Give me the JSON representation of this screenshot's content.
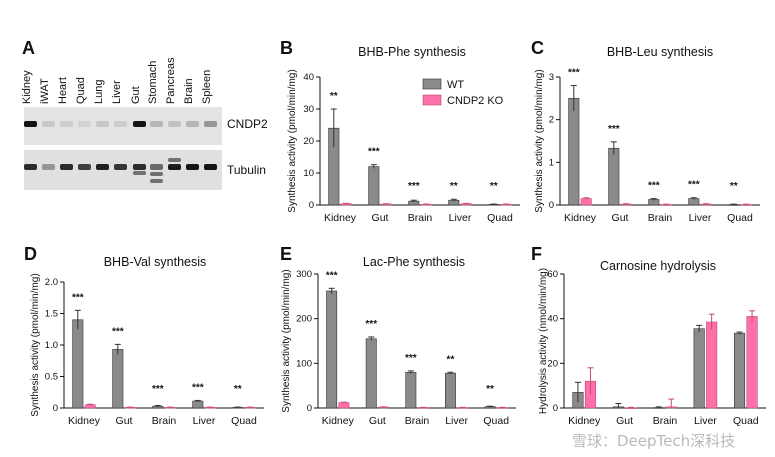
{
  "colors": {
    "wt": "#8a8a8a",
    "ko": "#ff6fa8",
    "axis": "#111111"
  },
  "panel_A": {
    "label": "A",
    "tissues": [
      "Kidney",
      "iWAT",
      "Heart",
      "Quad",
      "Lung",
      "Liver",
      "Gut",
      "Stomach",
      "Pancreas",
      "Brain",
      "Spleen"
    ],
    "blot_labels": [
      "CNDP2",
      "Tubulin"
    ]
  },
  "legend": {
    "wt": "WT",
    "ko": "CNDP2 KO"
  },
  "watermark": "雪球：DeepTech深科技",
  "chart_data": [
    {
      "panel": "B",
      "type": "bar",
      "title": "BHB-Phe synthesis",
      "ylabel": "Synthesis activity (pmol/min/mg)",
      "categories": [
        "Kidney",
        "Gut",
        "Brain",
        "Liver",
        "Quad"
      ],
      "ylim": [
        0,
        40
      ],
      "yticks": [
        0,
        10,
        20,
        30,
        40
      ],
      "series": [
        {
          "name": "WT",
          "values": [
            24,
            12,
            1.2,
            1.5,
            0.2
          ],
          "errors": [
            6,
            0.6,
            0.3,
            0.3,
            0.1
          ]
        },
        {
          "name": "CNDP2 KO",
          "values": [
            0.4,
            0.3,
            0.2,
            0.4,
            0.2
          ],
          "errors": [
            0.1,
            0.1,
            0.1,
            0.1,
            0.1
          ]
        }
      ],
      "significance": [
        "**",
        "***",
        "***",
        "**",
        "**"
      ]
    },
    {
      "panel": "C",
      "type": "bar",
      "title": "BHB-Leu synthesis",
      "ylabel": "Synthesis activity (pmol/min/mg)",
      "categories": [
        "Kidney",
        "Gut",
        "Brain",
        "Liver",
        "Quad"
      ],
      "ylim": [
        0,
        3
      ],
      "yticks": [
        0,
        1,
        2,
        3
      ],
      "series": [
        {
          "name": "WT",
          "values": [
            2.5,
            1.33,
            0.13,
            0.15,
            0.01
          ],
          "errors": [
            0.3,
            0.15,
            0.02,
            0.02,
            0.01
          ]
        },
        {
          "name": "CNDP2 KO",
          "values": [
            0.15,
            0.02,
            0.01,
            0.02,
            0.01
          ],
          "errors": [
            0.02,
            0.01,
            0.01,
            0.01,
            0.01
          ]
        }
      ],
      "significance": [
        "***",
        "***",
        "***",
        "***",
        "**"
      ]
    },
    {
      "panel": "D",
      "type": "bar",
      "title": "BHB-Val synthesis",
      "ylabel": "Synthesis activity (pmol/min/mg)",
      "categories": [
        "Kidney",
        "Gut",
        "Brain",
        "Liver",
        "Quad"
      ],
      "ylim": [
        0,
        2.0
      ],
      "yticks": [
        0,
        0.5,
        1.0,
        1.5,
        2.0
      ],
      "series": [
        {
          "name": "WT",
          "values": [
            1.4,
            0.93,
            0.03,
            0.11,
            0.01
          ],
          "errors": [
            0.15,
            0.08,
            0.01,
            0.01,
            0.005
          ]
        },
        {
          "name": "CNDP2 KO",
          "values": [
            0.05,
            0.01,
            0.01,
            0.01,
            0.01
          ],
          "errors": [
            0.01,
            0.005,
            0.005,
            0.005,
            0.005
          ]
        }
      ],
      "significance": [
        "***",
        "***",
        "***",
        "***",
        "**"
      ]
    },
    {
      "panel": "E",
      "type": "bar",
      "title": "Lac-Phe synthesis",
      "ylabel": "Synthesis activity (pmol/min/mg)",
      "categories": [
        "Kidney",
        "Gut",
        "Brain",
        "Liver",
        "Quad"
      ],
      "ylim": [
        0,
        300
      ],
      "yticks": [
        0,
        100,
        200,
        300
      ],
      "series": [
        {
          "name": "WT",
          "values": [
            262,
            155,
            80,
            78,
            3
          ],
          "errors": [
            6,
            4,
            3,
            2,
            1
          ]
        },
        {
          "name": "CNDP2 KO",
          "values": [
            12,
            2,
            1,
            1,
            1
          ],
          "errors": [
            1,
            0.5,
            0.5,
            0.5,
            0.5
          ]
        }
      ],
      "significance": [
        "***",
        "***",
        "***",
        "**",
        "**"
      ]
    },
    {
      "panel": "F",
      "type": "bar",
      "title": "Carnosine hydrolysis",
      "ylabel": "Hydrolysis activity (nmol/min/mg)",
      "categories": [
        "Kidney",
        "Gut",
        "Brain",
        "Liver",
        "Quad"
      ],
      "ylim": [
        0,
        60
      ],
      "yticks": [
        0,
        20,
        40,
        60
      ],
      "series": [
        {
          "name": "WT",
          "values": [
            7,
            0.5,
            0.2,
            35.5,
            33.5
          ],
          "errors": [
            4.5,
            1.5,
            0.3,
            1.5,
            0.5
          ]
        },
        {
          "name": "CNDP2 KO",
          "values": [
            12,
            0.1,
            0.5,
            38.5,
            41
          ],
          "errors": [
            6,
            0.2,
            3.5,
            3.5,
            2.5
          ]
        }
      ],
      "significance": [
        "",
        "",
        "",
        "",
        ""
      ]
    }
  ]
}
